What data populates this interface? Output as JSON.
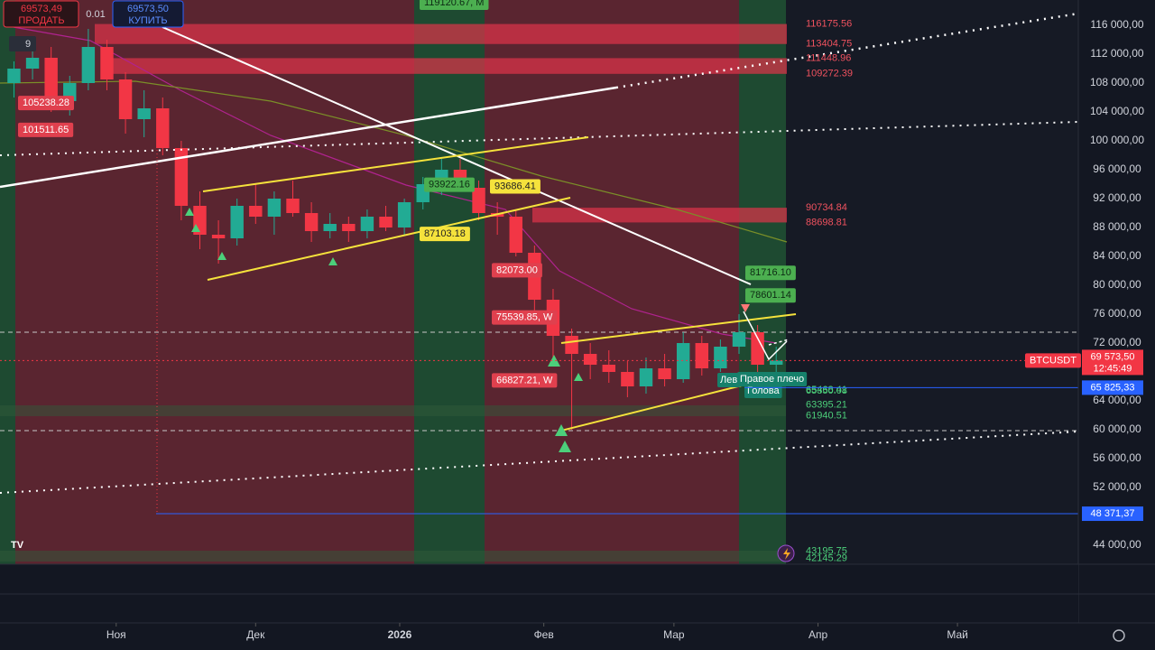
{
  "toolbar": {
    "sell": {
      "value": 69573.49,
      "label": "69573,49"
    },
    "sell_text": "ПРОДАТЬ",
    "quantity": 0.01,
    "buy": {
      "value": 69573.5,
      "label": "69573,50"
    },
    "buy_text": "КУПИТЬ",
    "indicators": 9
  },
  "chart_data": {
    "type": "candlestick",
    "symbol": "BTCUSDT",
    "categories": [
      null,
      null,
      null,
      null,
      null,
      null,
      null,
      null,
      null,
      null,
      null,
      null,
      null,
      null,
      null,
      null,
      null,
      null,
      null,
      null,
      null,
      null,
      null,
      null,
      null,
      null,
      null,
      null,
      null,
      null,
      null,
      null,
      null,
      null,
      null,
      null,
      null,
      null,
      null,
      null,
      null,
      null
    ],
    "open": [
      108000,
      110000,
      111500,
      105500,
      108000,
      113000,
      108500,
      103000,
      104500,
      99000,
      91000,
      87000,
      86500,
      91000,
      89500,
      92000,
      90000,
      87500,
      88500,
      87500,
      89500,
      88000,
      91500,
      94000,
      96000,
      93500,
      90000,
      89500,
      84500,
      78000,
      73000,
      70500,
      69000,
      68000,
      66000,
      68500,
      67000,
      72000,
      68500,
      71500,
      73500,
      69000
    ],
    "high": [
      111000,
      112500,
      113000,
      109000,
      115500,
      114000,
      109500,
      107000,
      106000,
      100000,
      93000,
      89000,
      92000,
      94000,
      93000,
      94500,
      91500,
      90000,
      89500,
      90500,
      91000,
      92000,
      95000,
      97500,
      97500,
      94500,
      91500,
      90500,
      85500,
      79500,
      74000,
      72000,
      71000,
      69500,
      70000,
      70500,
      73500,
      73000,
      72500,
      76000,
      74500,
      71500
    ],
    "low": [
      106000,
      108500,
      104000,
      103500,
      107000,
      107000,
      101000,
      100500,
      98000,
      89000,
      85000,
      83000,
      85500,
      88500,
      87000,
      89500,
      86000,
      86500,
      86000,
      86500,
      87500,
      87000,
      90500,
      92500,
      93000,
      89000,
      87000,
      84000,
      76500,
      70000,
      60000,
      67000,
      66500,
      64500,
      65000,
      66000,
      66500,
      67500,
      68000,
      70500,
      68000,
      67500
    ],
    "close": [
      110000,
      111500,
      105500,
      108000,
      113000,
      108500,
      103000,
      104500,
      99000,
      91000,
      87000,
      86500,
      91000,
      89500,
      92000,
      90000,
      87500,
      88500,
      87500,
      89500,
      88000,
      91500,
      94000,
      96000,
      93500,
      90000,
      89500,
      84500,
      78000,
      73000,
      70500,
      69000,
      68000,
      66000,
      68500,
      67000,
      72000,
      68500,
      71500,
      73500,
      69000,
      69573.5
    ],
    "up_color": "#22ab94",
    "down_color": "#f23645",
    "xlim": [
      -0.75,
      57.25
    ],
    "xticks": [
      {
        "value": 5.5,
        "label": "Ноя"
      },
      {
        "value": 13,
        "label": "Дек"
      },
      {
        "value": 20.75,
        "label": "2026"
      },
      {
        "value": 28.5,
        "label": "Фев"
      },
      {
        "value": 35.5,
        "label": "Мар"
      },
      {
        "value": 43.25,
        "label": "Апр"
      },
      {
        "value": 50.75,
        "label": "Май"
      }
    ],
    "ylim": [
      41375,
      119500
    ],
    "yticks": [
      {
        "value": 116000,
        "label": "116 000,00"
      },
      {
        "value": 112000,
        "label": "112 000,00"
      },
      {
        "value": 108000,
        "label": "108 000,00"
      },
      {
        "value": 104000,
        "label": "104 000,00"
      },
      {
        "value": 100000,
        "label": "100 000,00"
      },
      {
        "value": 96000,
        "label": "96 000,00"
      },
      {
        "value": 92000,
        "label": "92 000,00"
      },
      {
        "value": 88000,
        "label": "88 000,00"
      },
      {
        "value": 84000,
        "label": "84 000,00"
      },
      {
        "value": 80000,
        "label": "80 000,00"
      },
      {
        "value": 76000,
        "label": "76 000,00"
      },
      {
        "value": 72000,
        "label": "72 000,00"
      },
      {
        "value": 64000,
        "label": "64 000,00"
      },
      {
        "value": 60000,
        "label": "60 000,00"
      },
      {
        "value": 56000,
        "label": "56 000,00"
      },
      {
        "value": 52000,
        "label": "52 000,00"
      },
      {
        "value": 44000,
        "label": "44 000,00"
      }
    ],
    "last_price": {
      "value": 69573.5,
      "label": "69 573,50"
    },
    "countdown": "12:45:49",
    "alert_lines": [
      {
        "value": 65825.33,
        "label": "65 825,33"
      },
      {
        "value": 48371.37,
        "label": "48 371,37"
      }
    ],
    "zones": [
      [
        116175.56,
        113404.75
      ],
      [
        111448.96,
        109272.39
      ],
      [
        90734.84,
        88698.81
      ]
    ],
    "levels": [
      65350.08,
      65468.41,
      63395.21,
      61940.51,
      43195.75,
      42145.29
    ],
    "green_labels": [
      {
        "value": 119120.67,
        "label": "119120.67, M"
      },
      {
        "value": 93922.16
      },
      {
        "value": 81716.1,
        "label": "81716.10"
      },
      {
        "value": 78601.14
      }
    ],
    "yellow_labels": [
      {
        "value": 93686.41
      },
      {
        "value": 87103.18
      }
    ],
    "red_labels": [
      {
        "value": 105238.28
      },
      {
        "value": 101511.65
      },
      {
        "value": 82073,
        "label": "82073.00"
      },
      {
        "value": 75539.85,
        "label": "75539.85, W"
      },
      {
        "value": 66827.21,
        "label": "66827.21, W"
      }
    ],
    "pattern_labels": [
      "Лев",
      "Правое плечо",
      "Голова"
    ]
  }
}
